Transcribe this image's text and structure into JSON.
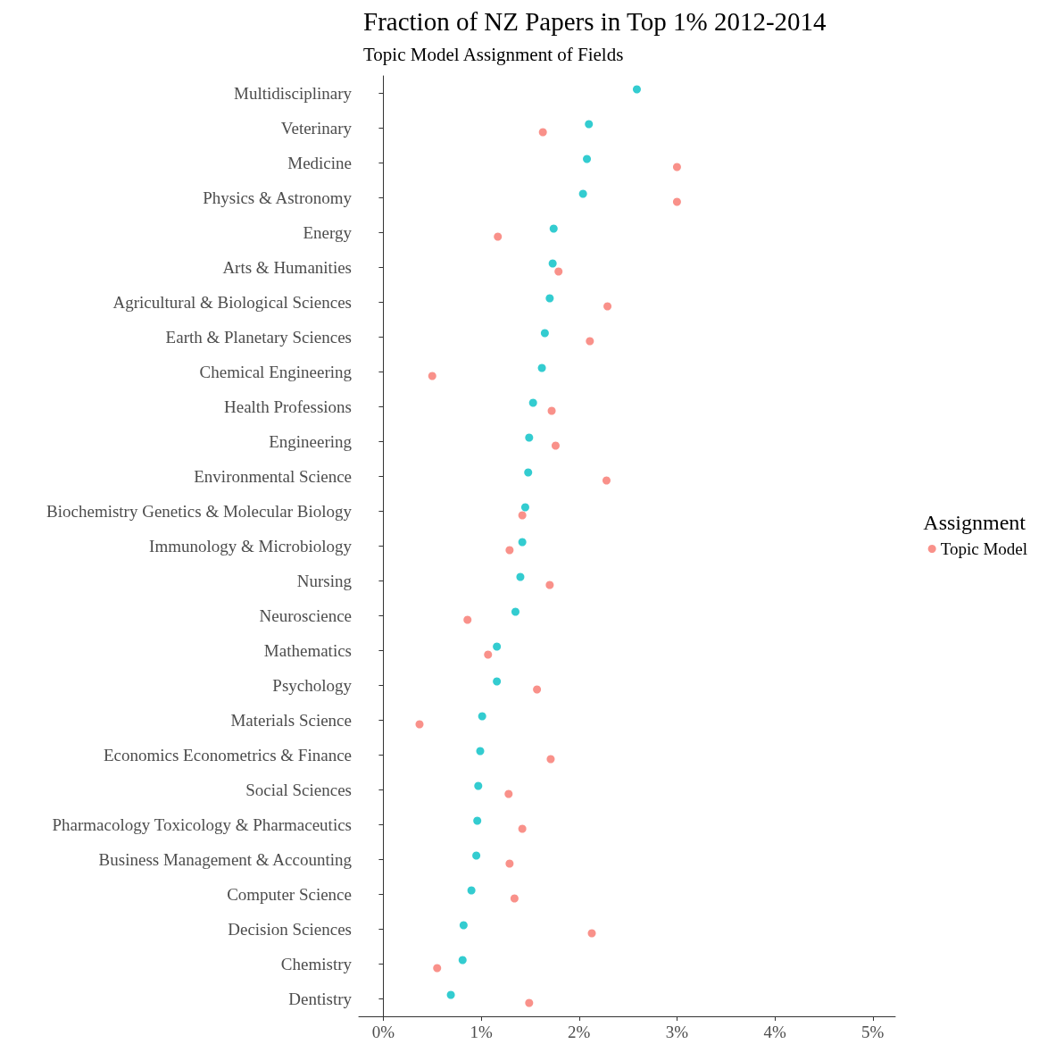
{
  "chart_data": {
    "type": "scatter",
    "title": "Fraction of NZ Papers in Top 1% 2012-2014",
    "subtitle": "Topic Model Assignment of Fields",
    "legend_title": "Assignment",
    "categories": [
      "Multidisciplinary",
      "Veterinary",
      "Medicine",
      "Physics & Astronomy",
      "Energy",
      "Arts & Humanities",
      "Agricultural & Biological Sciences",
      "Earth & Planetary Sciences",
      "Chemical Engineering",
      "Health Professions",
      "Engineering",
      "Environmental Science",
      "Biochemistry Genetics & Molecular Biology",
      "Immunology & Microbiology",
      "Nursing",
      "Neuroscience",
      "Mathematics",
      "Psychology",
      "Materials Science",
      "Economics Econometrics & Finance",
      "Social Sciences",
      "Pharmacology Toxicology & Pharmaceutics",
      "Business Management & Accounting",
      "Computer Science",
      "Decision Sciences",
      "Chemistry",
      "Dentistry"
    ],
    "orientation": "horizontal",
    "series": [
      {
        "color": "#00bfc4",
        "values": [
          2.59,
          2.1,
          2.08,
          2.04,
          1.74,
          1.73,
          1.7,
          1.65,
          1.62,
          1.53,
          1.49,
          1.48,
          1.45,
          1.42,
          1.4,
          1.35,
          1.16,
          1.16,
          1.01,
          0.99,
          0.97,
          0.96,
          0.95,
          0.9,
          0.82,
          0.81,
          0.69
        ]
      },
      {
        "name": "Topic Model",
        "color": "#f8766d",
        "values": [
          null,
          1.63,
          3.0,
          3.0,
          1.17,
          1.79,
          2.29,
          2.11,
          0.5,
          1.72,
          1.76,
          2.28,
          1.42,
          1.29,
          1.7,
          0.86,
          1.07,
          1.57,
          0.37,
          1.71,
          1.28,
          1.42,
          1.29,
          1.34,
          2.13,
          0.55,
          1.49
        ]
      }
    ],
    "xlim": [
      -0.25,
      5.23
    ],
    "xticks": [
      {
        "value": 0,
        "label": "0%"
      },
      {
        "value": 1,
        "label": "1%"
      },
      {
        "value": 2,
        "label": "2%"
      },
      {
        "value": 3,
        "label": "3%"
      },
      {
        "value": 4,
        "label": "4%"
      },
      {
        "value": 5,
        "label": "5%"
      }
    ],
    "grid": false,
    "legend": "right",
    "marker": "circle"
  }
}
